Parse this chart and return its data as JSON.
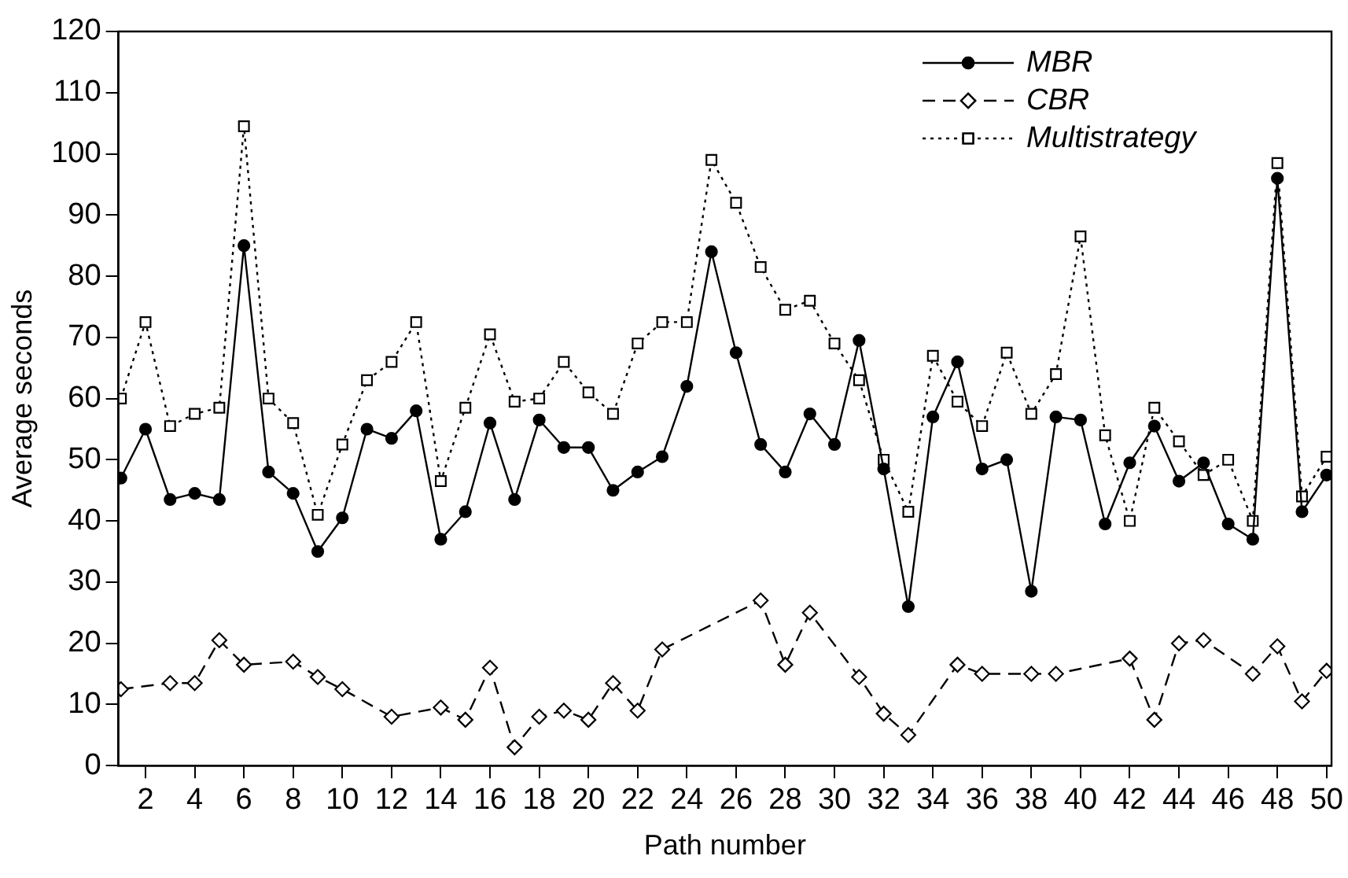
{
  "chart_data": {
    "type": "line",
    "xlabel": "Path number",
    "ylabel": "Average seconds",
    "x": [
      1,
      2,
      3,
      4,
      5,
      6,
      7,
      8,
      9,
      10,
      11,
      12,
      13,
      14,
      15,
      16,
      17,
      18,
      19,
      20,
      21,
      22,
      23,
      24,
      25,
      26,
      27,
      28,
      29,
      30,
      31,
      32,
      33,
      34,
      35,
      36,
      37,
      38,
      39,
      40,
      41,
      42,
      43,
      44,
      45,
      46,
      47,
      48,
      49,
      50
    ],
    "xlim": [
      0.9,
      50.2
    ],
    "xticks": [
      2,
      4,
      6,
      8,
      10,
      12,
      14,
      16,
      18,
      20,
      22,
      24,
      26,
      28,
      30,
      32,
      34,
      36,
      38,
      40,
      42,
      44,
      46,
      48,
      50
    ],
    "ylim": [
      0,
      120
    ],
    "yticks": [
      0,
      10,
      20,
      30,
      40,
      50,
      60,
      70,
      80,
      90,
      100,
      110,
      120
    ],
    "grid": false,
    "legend": "top right",
    "series": [
      {
        "name": "MBR",
        "color": "#000000",
        "marker": "circle",
        "line_style": "solid",
        "values": [
          47,
          55,
          43.5,
          44.5,
          43.5,
          85,
          48,
          44.5,
          35,
          40.5,
          55,
          53.5,
          58,
          37,
          41.5,
          56,
          43.5,
          56.5,
          52,
          52,
          45,
          48,
          50.5,
          62,
          84,
          67.5,
          52.5,
          48,
          57.5,
          52.5,
          69.5,
          48.5,
          26,
          57,
          66,
          48.5,
          50,
          28.5,
          57,
          56.5,
          39.5,
          49.5,
          55.5,
          46.5,
          49.5,
          39.5,
          37,
          96,
          41.5,
          47.5
        ]
      },
      {
        "name": "CBR",
        "color": "#000000",
        "marker": "diamond",
        "line_style": "dashed",
        "values": [
          12.5,
          null,
          13.5,
          13.5,
          20.5,
          16.5,
          null,
          17,
          14.5,
          12.5,
          null,
          8,
          null,
          9.5,
          7.5,
          16,
          3,
          8,
          9,
          7.5,
          13.5,
          9,
          19,
          null,
          null,
          null,
          27,
          16.5,
          25,
          null,
          14.5,
          8.5,
          5,
          null,
          16.5,
          15,
          null,
          15,
          15,
          null,
          null,
          17.5,
          7.5,
          20,
          20.5,
          null,
          15,
          19.5,
          10.5,
          15.5
        ]
      },
      {
        "name": "Multistrategy",
        "color": "#000000",
        "marker": "square",
        "line_style": "dotted",
        "values": [
          60,
          72.5,
          55.5,
          57.5,
          58.5,
          104.5,
          60,
          56,
          41,
          52.5,
          63,
          66,
          72.5,
          46.5,
          58.5,
          70.5,
          59.5,
          60,
          66,
          61,
          57.5,
          69,
          72.5,
          72.5,
          99,
          92,
          81.5,
          74.5,
          76,
          69,
          63,
          50,
          41.5,
          67,
          59.5,
          55.5,
          67.5,
          57.5,
          64,
          86.5,
          54,
          40,
          58.5,
          53,
          47.5,
          50,
          40,
          98.5,
          44,
          50.5
        ]
      }
    ]
  }
}
